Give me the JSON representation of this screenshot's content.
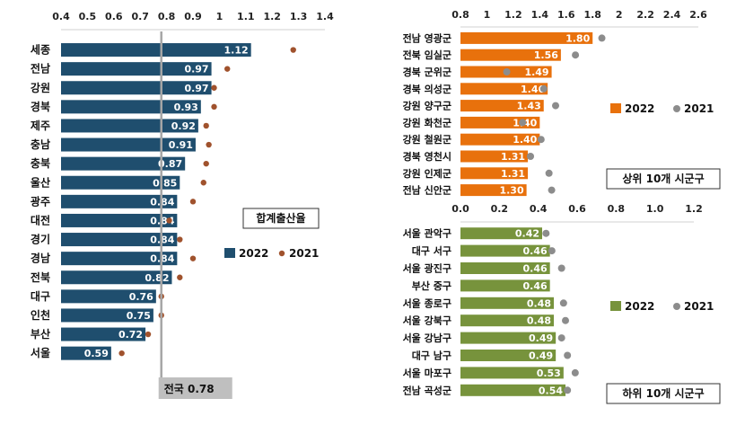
{
  "colors": {
    "left_2022": "#1f4e6e",
    "left_2021": "#a0522d",
    "top_2022": "#e8710c",
    "bottom_2022": "#77933c",
    "right_2021": "#8c8c8c",
    "national_line": "#a6a6a6"
  },
  "chart_data": [
    {
      "type": "bar",
      "orientation": "horizontal",
      "title": "합계출산율",
      "categories": [
        "세종",
        "전남",
        "강원",
        "경북",
        "제주",
        "충남",
        "충북",
        "울산",
        "광주",
        "대전",
        "경기",
        "경남",
        "전북",
        "대구",
        "인천",
        "부산",
        "서울"
      ],
      "series": [
        {
          "name": "2022",
          "type": "bar",
          "values": [
            1.12,
            0.97,
            0.97,
            0.93,
            0.92,
            0.91,
            0.87,
            0.85,
            0.84,
            0.84,
            0.84,
            0.84,
            0.82,
            0.76,
            0.75,
            0.72,
            0.59
          ]
        },
        {
          "name": "2021",
          "type": "dot",
          "values": [
            1.28,
            1.03,
            0.98,
            0.98,
            0.95,
            0.96,
            0.95,
            0.94,
            0.9,
            0.81,
            0.85,
            0.9,
            0.85,
            0.78,
            0.78,
            0.73,
            0.63
          ]
        }
      ],
      "value_labels": [
        "1.12",
        "0.97",
        "0.97",
        "0.93",
        "0.92",
        "0.91",
        "0.87",
        "0.85",
        "0.84",
        "0.84",
        "0.84",
        "0.84",
        "0.82",
        "0.76",
        "0.75",
        "0.72",
        "0.59"
      ],
      "xlim": [
        0.4,
        1.4
      ],
      "xticks": [
        "0.4",
        "0.5",
        "0.6",
        "0.7",
        "0.8",
        "0.9",
        "1",
        "1.1",
        "1.2",
        "1.3",
        "1.4"
      ],
      "reference_line": {
        "value": 0.78,
        "label": "전국 0.78"
      },
      "legend": [
        "2022",
        "2021"
      ],
      "legend_position": "right"
    },
    {
      "type": "bar",
      "orientation": "horizontal",
      "title": "상위 10개 시군구",
      "categories": [
        "전남 영광군",
        "전북 임실군",
        "경북 군위군",
        "경북 의성군",
        "강원 양구군",
        "강원 화천군",
        "강원 철원군",
        "경북 영천시",
        "강원 인제군",
        "전남 신안군"
      ],
      "series": [
        {
          "name": "2022",
          "type": "bar",
          "values": [
            1.8,
            1.56,
            1.49,
            1.46,
            1.43,
            1.4,
            1.4,
            1.31,
            1.31,
            1.3
          ]
        },
        {
          "name": "2021",
          "type": "dot",
          "values": [
            1.87,
            1.67,
            1.15,
            1.43,
            1.52,
            1.27,
            1.41,
            1.33,
            1.47,
            1.49
          ]
        }
      ],
      "value_labels": [
        "1.80",
        "1.56",
        "1.49",
        "1.46",
        "1.43",
        "1.40",
        "1.40",
        "1.31",
        "1.31",
        "1.30"
      ],
      "xlim": [
        0.8,
        2.6
      ],
      "xticks": [
        "0.8",
        "1",
        "1.2",
        "1.4",
        "1.6",
        "1.8",
        "2",
        "2.2",
        "2.4",
        "2.6"
      ],
      "legend": [
        "2022",
        "2021"
      ],
      "legend_position": "right"
    },
    {
      "type": "bar",
      "orientation": "horizontal",
      "title": "하위 10개 시군구",
      "categories": [
        "서울 관악구",
        "대구 서구",
        "서울 광진구",
        "부산 중구",
        "서울 종로구",
        "서울 강북구",
        "서울 강남구",
        "대구 남구",
        "서울 마포구",
        "전남 곡성군"
      ],
      "series": [
        {
          "name": "2022",
          "type": "bar",
          "values": [
            0.42,
            0.46,
            0.46,
            0.46,
            0.48,
            0.48,
            0.49,
            0.49,
            0.53,
            0.54
          ]
        },
        {
          "name": "2021",
          "type": "dot",
          "values": [
            0.44,
            0.47,
            0.52,
            null,
            0.53,
            0.54,
            0.52,
            0.55,
            0.59,
            0.55
          ]
        }
      ],
      "value_labels": [
        "0.42",
        "0.46",
        "0.46",
        "0.46",
        "0.48",
        "0.48",
        "0.49",
        "0.49",
        "0.53",
        "0.54"
      ],
      "xlim": [
        0.0,
        1.2
      ],
      "xticks": [
        "0.0",
        "0.2",
        "0.4",
        "0.6",
        "0.8",
        "1.0",
        "1.2"
      ],
      "legend": [
        "2022",
        "2021"
      ],
      "legend_position": "right"
    }
  ]
}
